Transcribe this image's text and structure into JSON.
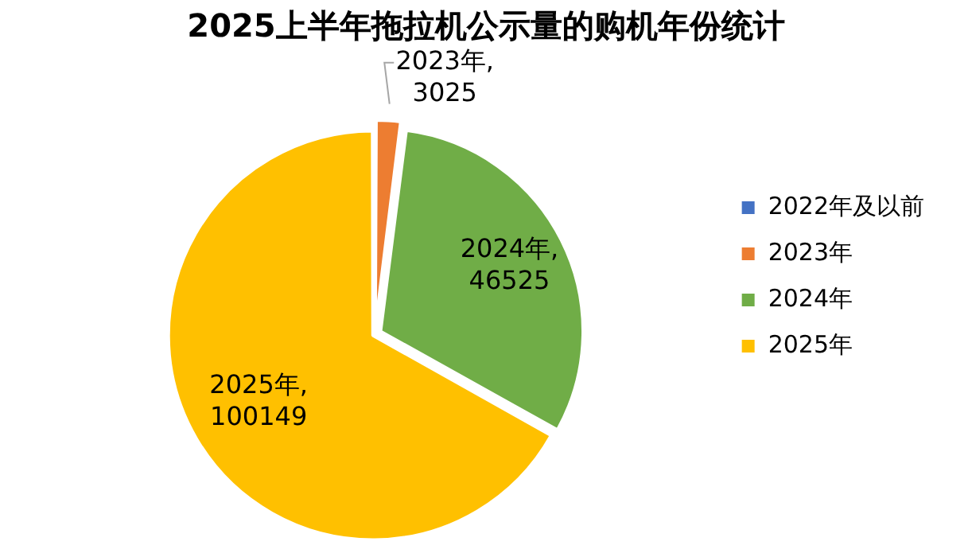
{
  "chart_data": {
    "type": "pie",
    "title": "2025上半年拖拉机公示量的购机年份统计",
    "categories": [
      "2022年及以前",
      "2023年",
      "2024年",
      "2025年"
    ],
    "values": [
      0,
      3025,
      46525,
      100149
    ],
    "colors": [
      "#4472c4",
      "#ed7d31",
      "#70ad47",
      "#ffc000"
    ],
    "value_labels": [
      null,
      "2023年, 3025",
      "2024年, 46525",
      "2025年, 100149"
    ],
    "legend": "right"
  }
}
